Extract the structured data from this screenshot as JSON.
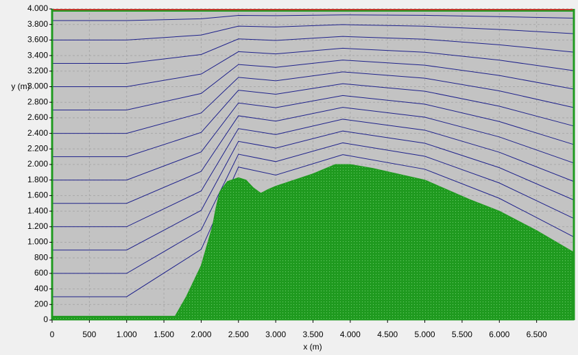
{
  "chart_data": {
    "type": "streamline",
    "xlabel": "x (m)",
    "ylabel": "y (m)",
    "xlim": [
      0,
      7000
    ],
    "ylim": [
      0,
      4000
    ],
    "xticks": [
      0,
      500,
      {
        "value": 1000,
        "label": "1.000"
      },
      {
        "value": 1500,
        "label": "1.500"
      },
      {
        "value": 2000,
        "label": "2.000"
      },
      {
        "value": 2500,
        "label": "2.500"
      },
      {
        "value": 3000,
        "label": "3.000"
      },
      {
        "value": 3500,
        "label": "3.500"
      },
      {
        "value": 4000,
        "label": "4.000"
      },
      {
        "value": 4500,
        "label": "4.500"
      },
      {
        "value": 5000,
        "label": "5.000"
      },
      {
        "value": 5500,
        "label": "5.500"
      },
      {
        "value": 6000,
        "label": "6.000"
      },
      {
        "value": 6500,
        "label": "6.500"
      }
    ],
    "yticks": [
      0,
      200,
      400,
      600,
      800,
      {
        "value": 1000,
        "label": "1.000"
      },
      {
        "value": 1200,
        "label": "1.200"
      },
      {
        "value": 1400,
        "label": "1.400"
      },
      {
        "value": 1600,
        "label": "1.600"
      },
      {
        "value": 1800,
        "label": "1.800"
      },
      {
        "value": 2000,
        "label": "2.000"
      },
      {
        "value": 2200,
        "label": "2.200"
      },
      {
        "value": 2400,
        "label": "2.400"
      },
      {
        "value": 2600,
        "label": "2.600"
      },
      {
        "value": 2800,
        "label": "2.800"
      },
      {
        "value": 3000,
        "label": "3.000"
      },
      {
        "value": 3200,
        "label": "3.200"
      },
      {
        "value": 3400,
        "label": "3.400"
      },
      {
        "value": 3600,
        "label": "3.600"
      },
      {
        "value": 3800,
        "label": "3.800"
      },
      {
        "value": 4000,
        "label": "4.000"
      }
    ],
    "grid": true,
    "terrain": {
      "color": "#1f9a1f",
      "x": [
        0,
        1650,
        1800,
        2000,
        2150,
        2200,
        2250,
        2350,
        2500,
        2600,
        2700,
        2800,
        2900,
        3000,
        3500,
        3800,
        4000,
        4300,
        5000,
        5600,
        6000,
        6500,
        7000
      ],
      "y": [
        50,
        50,
        300,
        700,
        1200,
        1450,
        1650,
        1780,
        1830,
        1800,
        1700,
        1630,
        1680,
        1720,
        1880,
        2000,
        2000,
        1950,
        1800,
        1550,
        1400,
        1150,
        870
      ]
    },
    "streamlines": {
      "color": "#1c1f8a",
      "x": [
        0,
        1000,
        2000,
        2500,
        3000,
        3900,
        5000,
        6000,
        7000
      ],
      "lines": [
        [
          300,
          300,
          909,
          1967,
          1864,
          2127,
          1939,
          1565,
          1068
        ],
        [
          600,
          600,
          1159,
          2132,
          2037,
          2278,
          2106,
          1762,
          1306
        ],
        [
          900,
          900,
          1410,
          2297,
          2211,
          2430,
          2273,
          1959,
          1543
        ],
        [
          1200,
          1200,
          1660,
          2461,
          2384,
          2582,
          2441,
          2157,
          1781
        ],
        [
          1500,
          1500,
          1911,
          2626,
          2557,
          2734,
          2608,
          2354,
          2018
        ],
        [
          1800,
          1800,
          2161,
          2791,
          2730,
          2886,
          2775,
          2552,
          2256
        ],
        [
          2100,
          2100,
          2412,
          2955,
          2903,
          3038,
          2942,
          2749,
          2494
        ],
        [
          2400,
          2400,
          2662,
          3120,
          3076,
          3190,
          3109,
          2946,
          2731
        ],
        [
          2700,
          2700,
          2913,
          3285,
          3249,
          3342,
          3276,
          3144,
          2969
        ],
        [
          3000,
          3000,
          3163,
          3450,
          3422,
          3494,
          3443,
          3341,
          3206
        ],
        [
          3300,
          3300,
          3414,
          3614,
          3595,
          3646,
          3610,
          3539,
          3444
        ],
        [
          3600,
          3600,
          3664,
          3779,
          3768,
          3798,
          3777,
          3736,
          3682
        ],
        [
          3850,
          3850,
          3873,
          3916,
          3913,
          3923,
          3917,
          3901,
          3881
        ]
      ]
    }
  }
}
